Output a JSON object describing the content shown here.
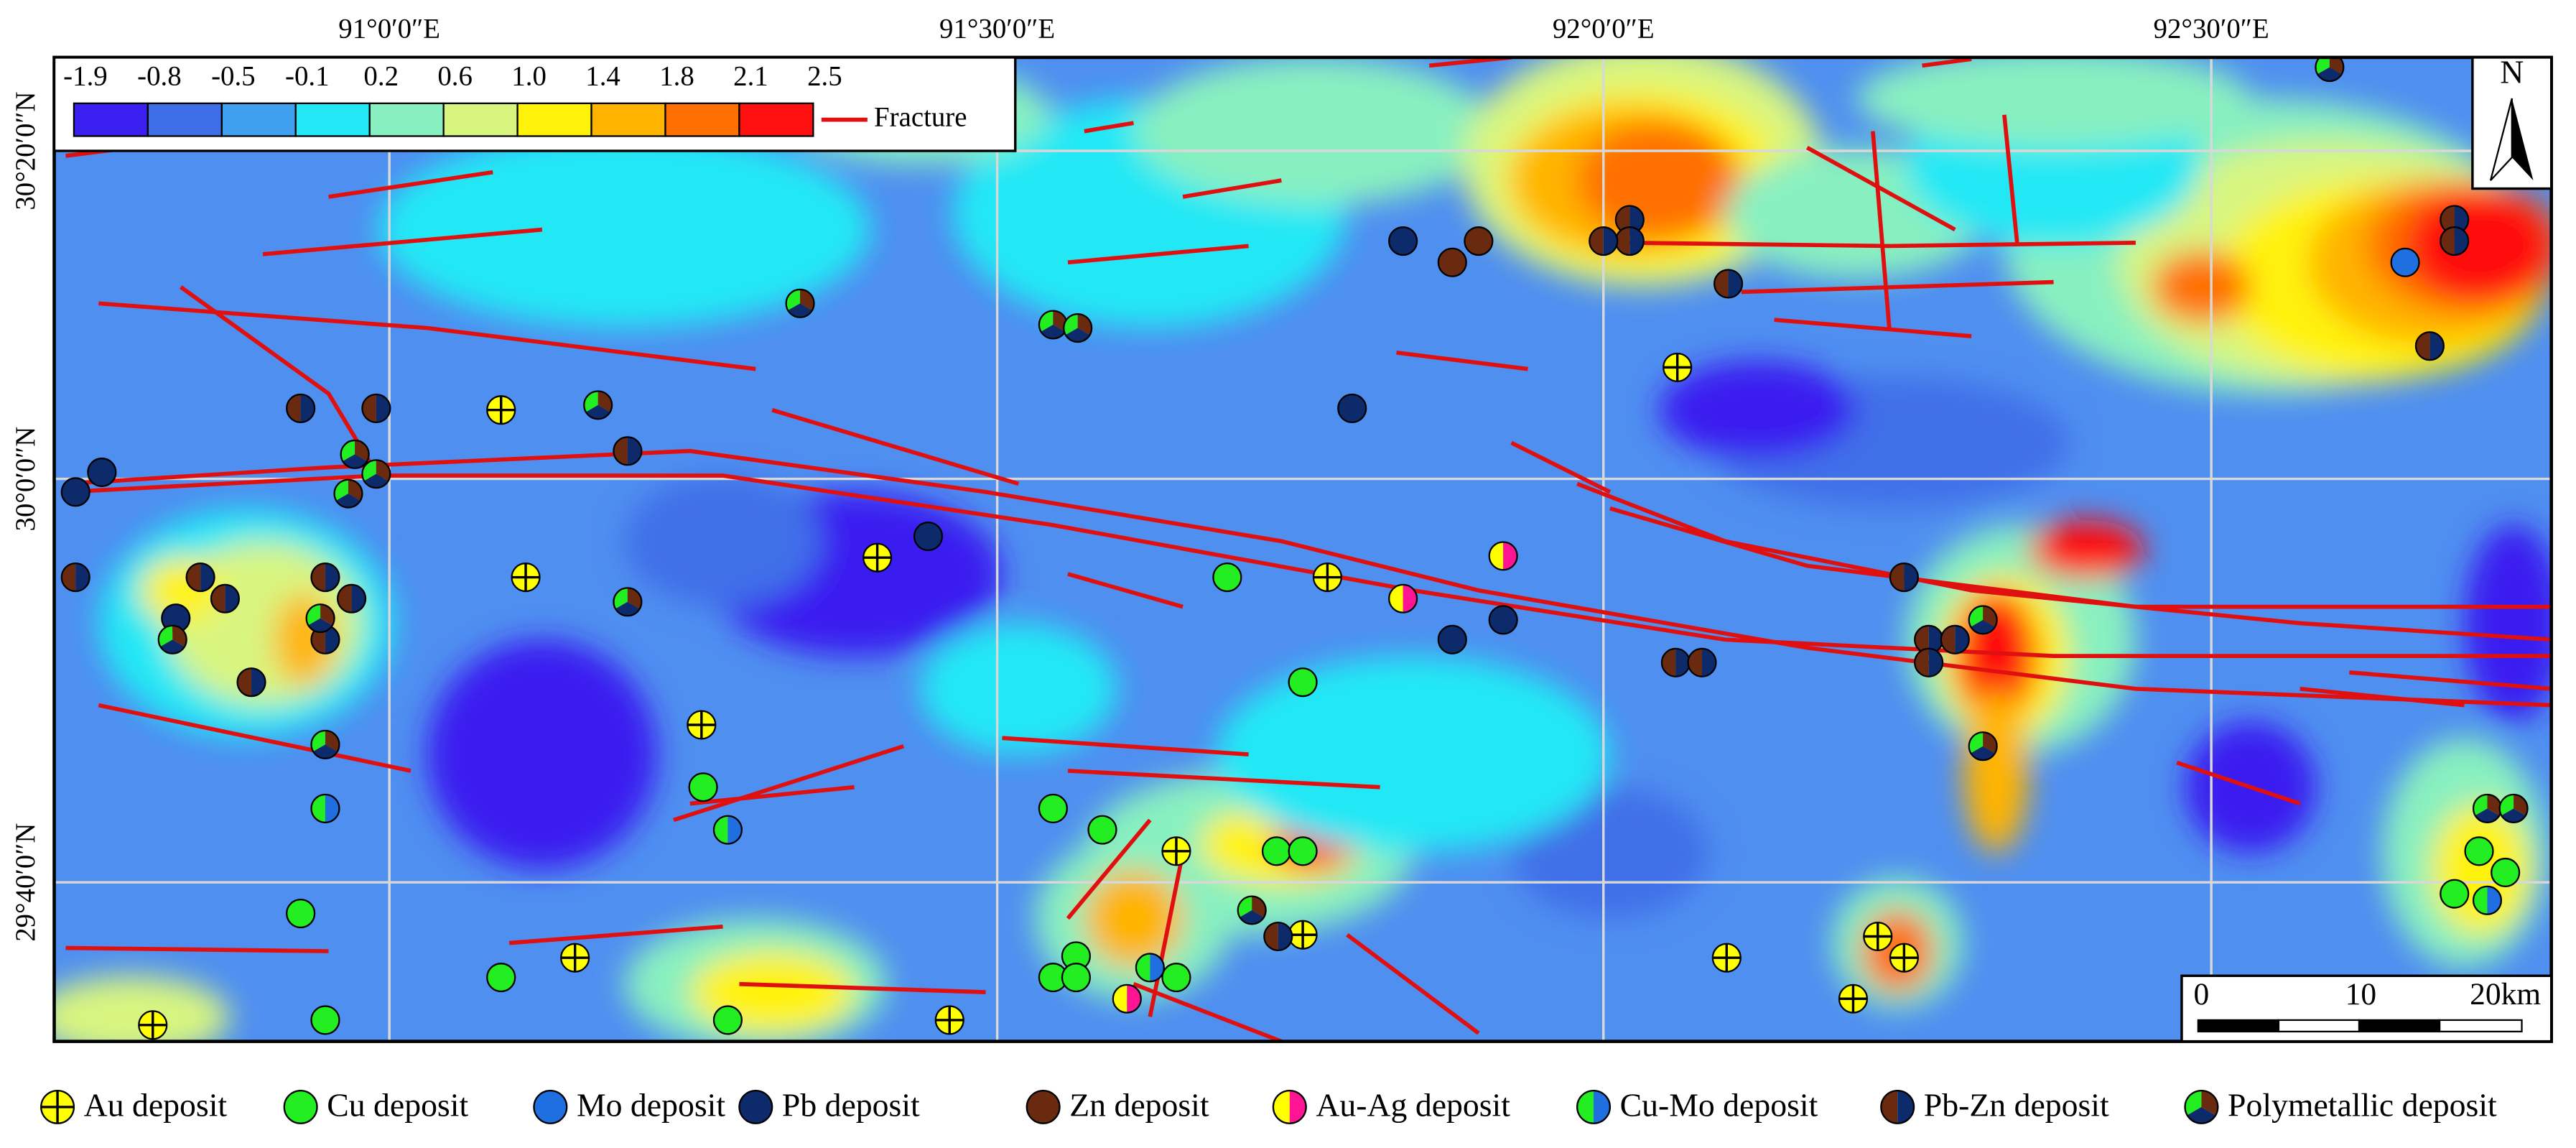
{
  "map": {
    "top_labels": [
      "91°0′0″E",
      "91°30′0″E",
      "92°0′0″E",
      "92°30′0″E"
    ],
    "left_labels": [
      "30°20′0″N",
      "30°0′0″N",
      "29°40′0″N"
    ],
    "colorbar": {
      "labels": [
        "-1.9",
        "-0.8",
        "-0.5",
        "-0.1",
        "0.2",
        "0.6",
        "1.0",
        "1.4",
        "1.8",
        "2.1",
        "2.5"
      ],
      "colors": [
        "#3a1ff0",
        "#3f6fe8",
        "#3ea0ef",
        "#24e8f5",
        "#88f0c0",
        "#d8f580",
        "#fff20a",
        "#ffb400",
        "#ff7000",
        "#ff1010"
      ]
    },
    "fracture_label": "Fracture",
    "fracture_color": "#e01010",
    "north": "N",
    "scale": [
      "0",
      "10",
      "20km"
    ],
    "legend": [
      {
        "label": "Au deposit",
        "colors": [
          "#ffff00"
        ]
      },
      {
        "label": "Cu deposit",
        "colors": [
          "#22ee22"
        ]
      },
      {
        "label": "Mo deposit",
        "colors": [
          "#1f6fe0"
        ]
      },
      {
        "label": "Pb deposit",
        "colors": [
          "#0d2a6a"
        ]
      },
      {
        "label": "Zn deposit",
        "colors": [
          "#6a2a10"
        ]
      },
      {
        "label": "Au-Ag deposit",
        "colors": [
          "#ffff00",
          "#ff1493"
        ]
      },
      {
        "label": "Cu-Mo deposit",
        "colors": [
          "#22ee22",
          "#1f6fe0"
        ]
      },
      {
        "label": "Pb-Zn deposit",
        "colors": [
          "#6a2a10",
          "#0d2a6a"
        ]
      },
      {
        "label": "Polymetallic deposit",
        "colors": [
          "#22ee22",
          "#0d2a6a",
          "#6a2a10"
        ]
      }
    ]
  }
}
